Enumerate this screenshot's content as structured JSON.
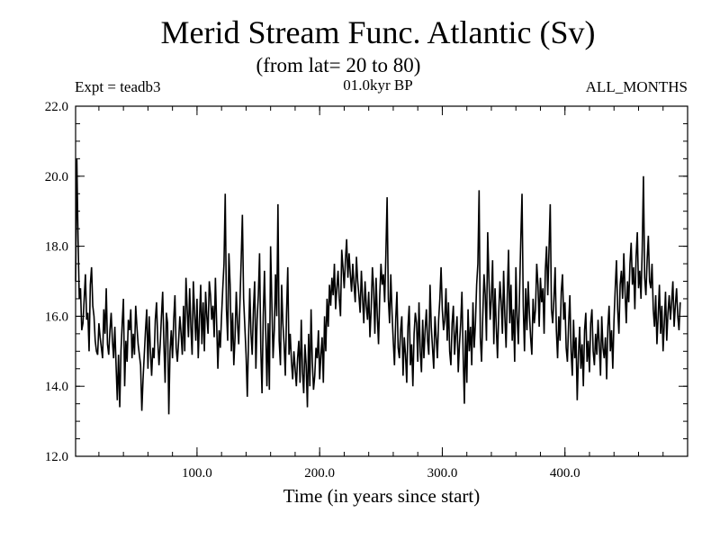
{
  "chart_data": {
    "type": "line",
    "title": "Merid Stream Func. Atlantic (Sv)",
    "subtitle": "(from lat= 20 to 80)",
    "annotations": {
      "left": "Expt = teadb3",
      "center": "01.0kyr BP",
      "right": "ALL_MONTHS"
    },
    "xlabel": "Time (in years since start)",
    "ylabel": "",
    "xlim": [
      1,
      500
    ],
    "ylim": [
      12.0,
      22.0
    ],
    "x_ticks": [
      100,
      200,
      300,
      400
    ],
    "x_tick_labels": [
      "100.0",
      "200.0",
      "300.0",
      "400.0"
    ],
    "y_ticks": [
      12,
      14,
      16,
      18,
      20,
      22
    ],
    "y_tick_labels": [
      "12.0",
      "14.0",
      "16.0",
      "18.0",
      "20.0",
      "22.0"
    ],
    "x_start": 1,
    "x_step": 1,
    "y": [
      17.0,
      20.5,
      18.2,
      16.5,
      16.8,
      15.6,
      15.8,
      16.5,
      17.2,
      15.9,
      16.1,
      15.0,
      16.9,
      17.4,
      16.3,
      16.0,
      15.3,
      15.0,
      14.9,
      15.8,
      15.4,
      15.1,
      14.8,
      16.2,
      15.5,
      16.8,
      15.2,
      14.9,
      15.6,
      16.1,
      15.3,
      14.8,
      15.7,
      14.6,
      13.6,
      14.9,
      13.4,
      15.0,
      15.8,
      16.5,
      14.0,
      15.3,
      14.7,
      15.9,
      15.6,
      16.2,
      14.8,
      15.5,
      14.9,
      16.3,
      15.7,
      15.2,
      14.9,
      14.6,
      13.3,
      14.2,
      14.9,
      15.6,
      16.2,
      14.5,
      16.0,
      15.0,
      14.3,
      15.1,
      14.8,
      15.9,
      16.4,
      15.3,
      14.6,
      15.2,
      16.0,
      16.7,
      15.2,
      14.1,
      16.1,
      15.8,
      13.2,
      15.0,
      15.6,
      14.8,
      15.9,
      16.6,
      15.1,
      14.7,
      15.3,
      16.0,
      15.5,
      14.9,
      16.3,
      15.0,
      17.1,
      16.2,
      15.4,
      16.8,
      15.7,
      14.9,
      17.0,
      16.1,
      15.3,
      16.5,
      14.8,
      15.9,
      16.9,
      15.2,
      16.4,
      15.0,
      16.7,
      16.0,
      15.5,
      17.0,
      16.6,
      15.9,
      16.3,
      15.4,
      17.1,
      15.8,
      14.5,
      15.6,
      15.1,
      16.0,
      16.8,
      17.5,
      19.5,
      16.2,
      15.3,
      17.8,
      16.9,
      15.0,
      16.1,
      14.6,
      15.4,
      16.7,
      15.8,
      15.2,
      16.4,
      17.6,
      18.9,
      16.5,
      15.7,
      14.9,
      13.7,
      15.3,
      16.8,
      15.5,
      14.9,
      16.2,
      17.0,
      14.5,
      15.9,
      16.6,
      17.8,
      15.1,
      13.8,
      16.0,
      17.3,
      15.6,
      14.0,
      15.8,
      13.9,
      18.0,
      16.4,
      14.8,
      15.6,
      17.2,
      16.0,
      19.2,
      15.3,
      14.6,
      16.9,
      15.8,
      15.2,
      14.3,
      16.1,
      17.4,
      14.9,
      15.5,
      14.7,
      14.2,
      15.0,
      14.5,
      14.0,
      14.8,
      15.3,
      14.1,
      15.9,
      14.4,
      13.8,
      15.2,
      14.6,
      13.4,
      15.5,
      14.0,
      16.2,
      14.7,
      13.9,
      14.3,
      15.1,
      14.8,
      15.6,
      14.2,
      14.9,
      15.4,
      14.1,
      16.0,
      15.0,
      16.5,
      15.7,
      16.9,
      16.3,
      17.1,
      16.6,
      17.5,
      16.2,
      16.8,
      17.3,
      16.5,
      16.0,
      17.9,
      17.4,
      16.8,
      17.6,
      18.2,
      17.1,
      17.8,
      17.2,
      16.7,
      17.5,
      16.9,
      16.4,
      17.7,
      17.0,
      16.6,
      16.1,
      17.3,
      16.5,
      15.8,
      17.0,
      16.3,
      15.9,
      16.7,
      15.4,
      16.2,
      17.4,
      16.8,
      15.5,
      17.1,
      16.0,
      15.2,
      16.6,
      17.5,
      16.9,
      17.2,
      16.4,
      17.8,
      19.4,
      16.5,
      15.8,
      17.2,
      16.1,
      15.3,
      14.6,
      15.9,
      16.7,
      15.1,
      14.8,
      15.6,
      16.0,
      14.3,
      15.4,
      14.9,
      14.1,
      15.7,
      16.3,
      14.6,
      15.2,
      14.0,
      15.5,
      16.1,
      15.8,
      14.7,
      16.4,
      15.0,
      14.4,
      15.9,
      14.8,
      15.6,
      16.2,
      15.3,
      14.9,
      16.9,
      15.7,
      15.1,
      14.5,
      16.0,
      15.4,
      14.8,
      15.9,
      16.5,
      17.4,
      16.2,
      15.6,
      15.9,
      16.8,
      15.3,
      16.4,
      15.0,
      14.6,
      15.8,
      16.3,
      14.9,
      15.5,
      16.0,
      14.4,
      15.2,
      15.8,
      16.7,
      14.9,
      13.5,
      15.6,
      14.1,
      16.2,
      15.0,
      15.7,
      14.6,
      16.4,
      15.1,
      15.8,
      16.9,
      17.5,
      19.6,
      15.4,
      14.7,
      16.0,
      17.2,
      16.6,
      15.3,
      18.4,
      17.1,
      15.9,
      16.5,
      17.6,
      15.2,
      16.8,
      15.7,
      14.8,
      16.1,
      17.0,
      16.4,
      15.5,
      17.3,
      16.0,
      15.1,
      16.6,
      17.9,
      15.8,
      16.9,
      15.3,
      16.2,
      14.7,
      17.4,
      16.0,
      15.2,
      16.7,
      18.2,
      19.5,
      16.3,
      15.0,
      16.8,
      15.6,
      17.0,
      16.1,
      15.4,
      14.9,
      16.5,
      15.8,
      16.2,
      17.5,
      16.9,
      15.7,
      17.1,
      16.4,
      16.8,
      15.5,
      17.3,
      18.0,
      16.6,
      17.9,
      19.2,
      16.2,
      15.8,
      16.5,
      17.4,
      15.6,
      14.8,
      16.0,
      15.3,
      16.7,
      17.2,
      15.9,
      16.4,
      15.1,
      14.7,
      15.8,
      16.6,
      15.0,
      14.3,
      15.9,
      14.8,
      15.4,
      13.6,
      14.9,
      15.7,
      14.5,
      15.2,
      14.0,
      15.6,
      16.1,
      14.7,
      15.3,
      14.4,
      15.8,
      16.2,
      15.0,
      14.6,
      15.5,
      14.9,
      15.9,
      15.2,
      14.3,
      16.0,
      15.1,
      14.8,
      15.4,
      14.2,
      15.7,
      16.3,
      15.0,
      15.6,
      14.5,
      15.9,
      16.8,
      17.6,
      16.2,
      15.5,
      16.9,
      17.3,
      16.5,
      17.8,
      16.7,
      15.8,
      17.0,
      16.4,
      17.5,
      18.1,
      16.9,
      17.4,
      16.2,
      17.7,
      18.4,
      16.8,
      17.3,
      16.5,
      17.9,
      20.0,
      17.1,
      16.6,
      17.6,
      18.3,
      17.0,
      16.8,
      17.5,
      16.2,
      15.7,
      16.6,
      15.2,
      16.0,
      16.9,
      15.5,
      16.3,
      15.0,
      15.8,
      16.7,
      15.3,
      16.1,
      16.6,
      15.9,
      16.4,
      17.0,
      15.7,
      16.3,
      16.8,
      16.0,
      15.6,
      16.4
    ]
  }
}
